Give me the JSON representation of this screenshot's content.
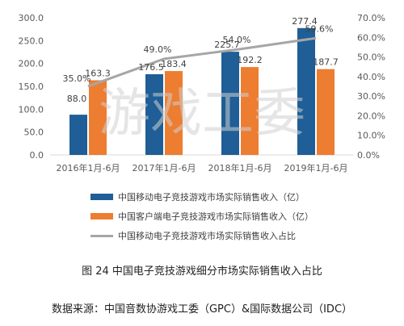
{
  "colors": {
    "mobile": "#1F5E96",
    "client": "#ED7D31",
    "ratio": "#A6A6A6"
  },
  "watermark": "游戏工委",
  "chart_data": {
    "type": "bar",
    "categories": [
      "2016年1月-6月",
      "2017年1月-6月",
      "2018年1月-6月",
      "2019年1月-6月"
    ],
    "series": [
      {
        "name": "中国移动电子竞技游戏市场实际销售收入（亿）",
        "type": "bar",
        "axis": "left",
        "values": [
          88.0,
          176.5,
          225.7,
          277.4
        ],
        "labels": [
          "88.0",
          "176.5",
          "225.7",
          "277.4"
        ]
      },
      {
        "name": "中国客户端电子竞技游戏市场实际销售收入（亿）",
        "type": "bar",
        "axis": "left",
        "values": [
          163.3,
          183.4,
          192.2,
          187.7
        ],
        "labels": [
          "163.3",
          "183.4",
          "192.2",
          "187.7"
        ]
      },
      {
        "name": "中国移动电子竞技游戏市场实际销售收入占比",
        "type": "line",
        "axis": "right",
        "values": [
          35.0,
          49.0,
          54.0,
          59.6
        ],
        "labels": [
          "35.0%",
          "49.0%",
          "54.0%",
          "59.6%"
        ]
      }
    ],
    "ylim": [
      0,
      300
    ],
    "y2lim": [
      0,
      70
    ],
    "yticks": [
      "0.0",
      "50.0",
      "100.0",
      "150.0",
      "200.0",
      "250.0",
      "300.0"
    ],
    "y2ticks": [
      "0.0%",
      "10.0%",
      "20.0%",
      "30.0%",
      "40.0%",
      "50.0%",
      "60.0%",
      "70.0%"
    ],
    "legend": "bottom",
    "grid": false
  },
  "caption": "图 24  中国电子竞技游戏细分市场实际销售收入占比",
  "source": "数据来源：中国音数协游戏工委（GPC）&国际数据公司（IDC）"
}
